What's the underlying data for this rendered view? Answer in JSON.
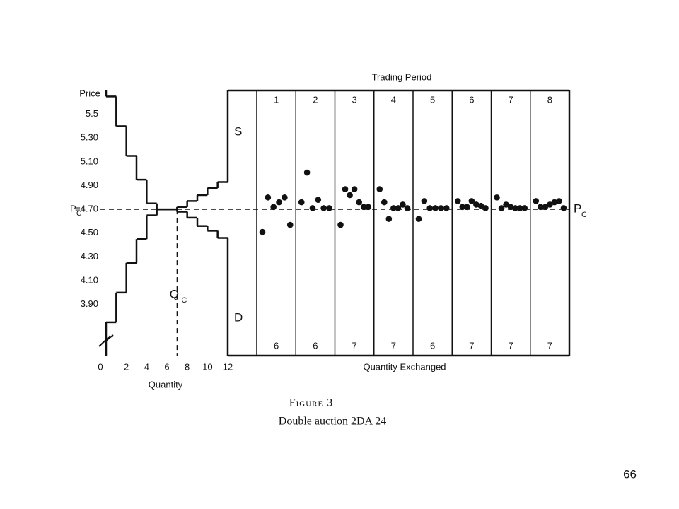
{
  "chart_data": [
    {
      "type": "step",
      "y_label": "Price",
      "x_label": "Quantity",
      "xlim": [
        0,
        12
      ],
      "xticks": [
        0,
        2,
        4,
        6,
        8,
        10,
        12
      ],
      "ylim": [
        3.47,
        5.7
      ],
      "yticks": [
        5.5,
        {
          "value": 5.3,
          "label": "5.30"
        },
        {
          "value": 5.1,
          "label": "5.10"
        },
        {
          "value": 4.9,
          "label": "4.90"
        },
        {
          "value": 4.7,
          "label": "=4.70"
        },
        {
          "value": 4.5,
          "label": "4.50"
        },
        {
          "value": 4.3,
          "label": "4.30"
        },
        {
          "value": 4.1,
          "label": "4.10"
        },
        {
          "value": 3.9,
          "label": "3.90"
        }
      ],
      "price_symbol": "P",
      "price_subscript": "C",
      "quantity_symbol": "Q",
      "quantity_subscript": "C",
      "equilibrium_price": 4.7,
      "equilibrium_quantity": 7,
      "series": [
        {
          "name": "S",
          "values": [
            3.75,
            4.0,
            4.25,
            4.45,
            4.65,
            4.7,
            4.7,
            4.72,
            4.77,
            4.82,
            4.88,
            4.93
          ]
        },
        {
          "name": "D",
          "values": [
            5.65,
            5.4,
            5.15,
            4.95,
            4.75,
            4.7,
            4.7,
            4.68,
            4.63,
            4.56,
            4.52,
            4.46
          ]
        }
      ]
    },
    {
      "type": "scatter",
      "title": "Trading Period",
      "x_label": "Quantity Exchanged",
      "ylim": [
        3.47,
        5.7
      ],
      "periods": [
        {
          "label": "1",
          "quantity": 6,
          "prices": [
            4.51,
            4.8,
            4.72,
            4.76,
            4.8,
            4.57
          ]
        },
        {
          "label": "2",
          "quantity": 6,
          "prices": [
            4.76,
            5.01,
            4.71,
            4.78,
            4.71,
            4.71
          ]
        },
        {
          "label": "3",
          "quantity": 7,
          "prices": [
            4.57,
            4.87,
            4.82,
            4.87,
            4.76,
            4.72,
            4.72
          ]
        },
        {
          "label": "4",
          "quantity": 7,
          "prices": [
            4.87,
            4.76,
            4.62,
            4.71,
            4.71,
            4.74,
            4.71
          ]
        },
        {
          "label": "5",
          "quantity": 6,
          "prices": [
            4.62,
            4.77,
            4.71,
            4.71,
            4.71,
            4.71
          ]
        },
        {
          "label": "6",
          "quantity": 7,
          "prices": [
            4.77,
            4.72,
            4.72,
            4.77,
            4.74,
            4.73,
            4.71
          ]
        },
        {
          "label": "7",
          "quantity": 7,
          "prices": [
            4.8,
            4.71,
            4.74,
            4.72,
            4.71,
            4.71,
            4.71
          ]
        },
        {
          "label": "8",
          "quantity": 7,
          "prices": [
            4.77,
            4.72,
            4.72,
            4.74,
            4.76,
            4.77,
            4.71
          ]
        }
      ]
    }
  ],
  "caption": {
    "figure": "Figure 3",
    "title": "Double auction 2DA 24"
  },
  "page_number": "66"
}
